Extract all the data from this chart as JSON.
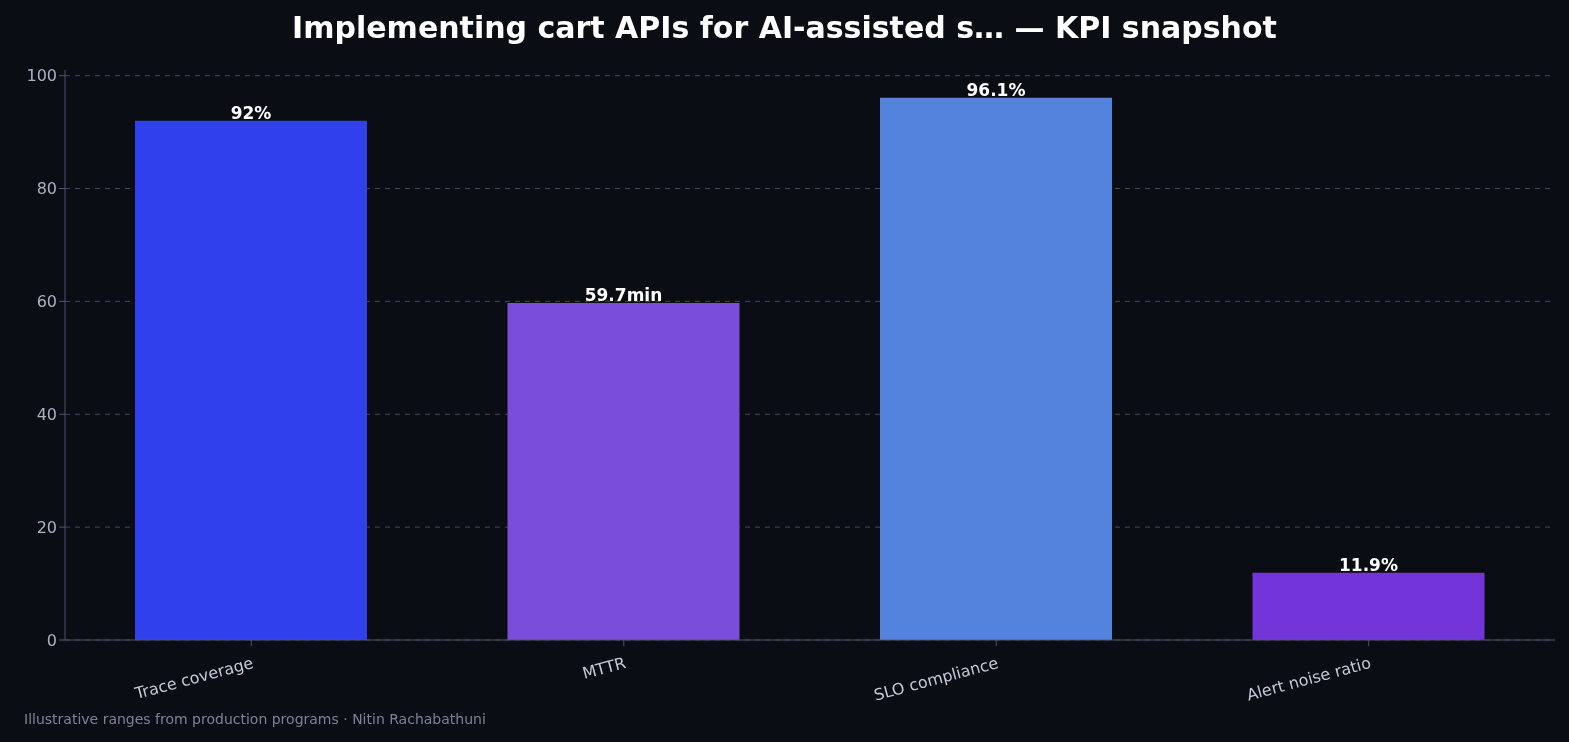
{
  "chart_data": {
    "type": "bar",
    "title": "Implementing cart APIs for AI-assisted s… — KPI snapshot",
    "categories": [
      "Trace coverage",
      "MTTR",
      "SLO compliance",
      "Alert noise ratio"
    ],
    "values": [
      92,
      59.7,
      96.1,
      11.9
    ],
    "colors": [
      "#2f40ec",
      "#7b4ddb",
      "#5483de",
      "#7335d9"
    ],
    "value_labels": [
      "92%",
      "59.7min",
      "96.1%",
      "11.9%"
    ],
    "ylim": [
      0,
      101
    ],
    "yticks": [
      0,
      20,
      40,
      60,
      80,
      100
    ],
    "grid": "y",
    "annotations": [
      "Illustrative ranges from production programs · Nitin Rachabathuni"
    ]
  }
}
